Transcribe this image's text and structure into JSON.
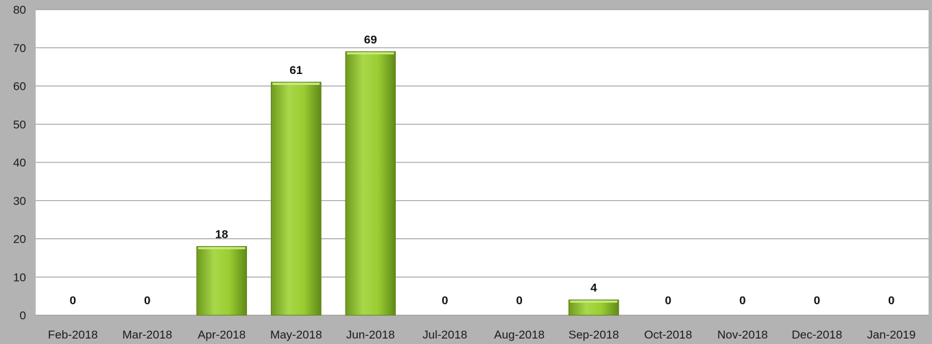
{
  "chart_data": {
    "type": "bar",
    "title": "",
    "xlabel": "",
    "ylabel": "",
    "categories": [
      "Feb-2018",
      "Mar-2018",
      "Apr-2018",
      "May-2018",
      "Jun-2018",
      "Jul-2018",
      "Aug-2018",
      "Sep-2018",
      "Oct-2018",
      "Nov-2018",
      "Dec-2018",
      "Jan-2019"
    ],
    "values": [
      0,
      0,
      18,
      61,
      69,
      0,
      0,
      4,
      0,
      0,
      0,
      0
    ],
    "data_labels": [
      "0",
      "0",
      "18",
      "61",
      "69",
      "0",
      "0",
      "4",
      "0",
      "0",
      "0",
      "0"
    ],
    "ylim": [
      0,
      80
    ],
    "yticks": [
      0,
      10,
      20,
      30,
      40,
      50,
      60,
      70,
      80
    ],
    "ytick_labels": [
      "0",
      "10",
      "20",
      "30",
      "40",
      "50",
      "60",
      "70",
      "80"
    ],
    "grid": true,
    "legend": "none",
    "colors": {
      "bar_fill": "#9acd32",
      "bar_edge": "#5f7f1a",
      "plot_background": "#ffffff",
      "page_background": "#b3b3b3",
      "gridline": "#8c8c8c"
    }
  }
}
